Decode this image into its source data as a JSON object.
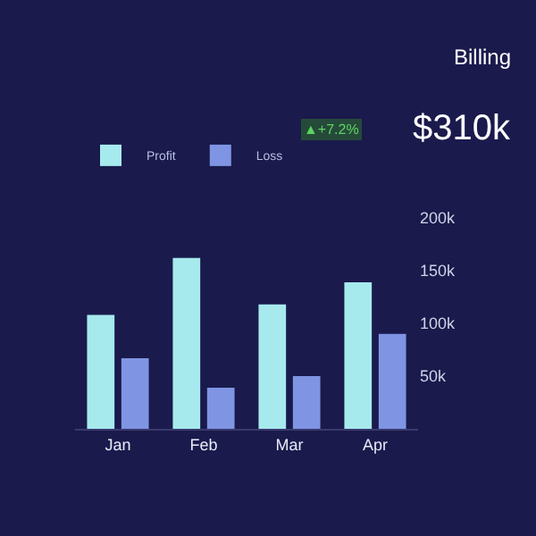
{
  "chart_data": {
    "type": "bar",
    "title": "Billing",
    "annotations": [
      "$310k",
      "▲+7.2%"
    ],
    "categories": [
      "Jan",
      "Feb",
      "Mar",
      "Apr"
    ],
    "series": [
      {
        "name": "Profit",
        "color": "#a6eaee",
        "values": [
          108,
          162,
          118,
          139
        ]
      },
      {
        "name": "Loss",
        "color": "#7f95e3",
        "values": [
          67,
          39,
          50,
          90
        ]
      }
    ],
    "ylim": [
      0,
      200
    ],
    "yticks": [
      {
        "value": 50,
        "label": "50k"
      },
      {
        "value": 100,
        "label": "100k"
      },
      {
        "value": 150,
        "label": "150k"
      },
      {
        "value": 200,
        "label": "200k"
      }
    ],
    "grid": false,
    "legend": "top left"
  }
}
